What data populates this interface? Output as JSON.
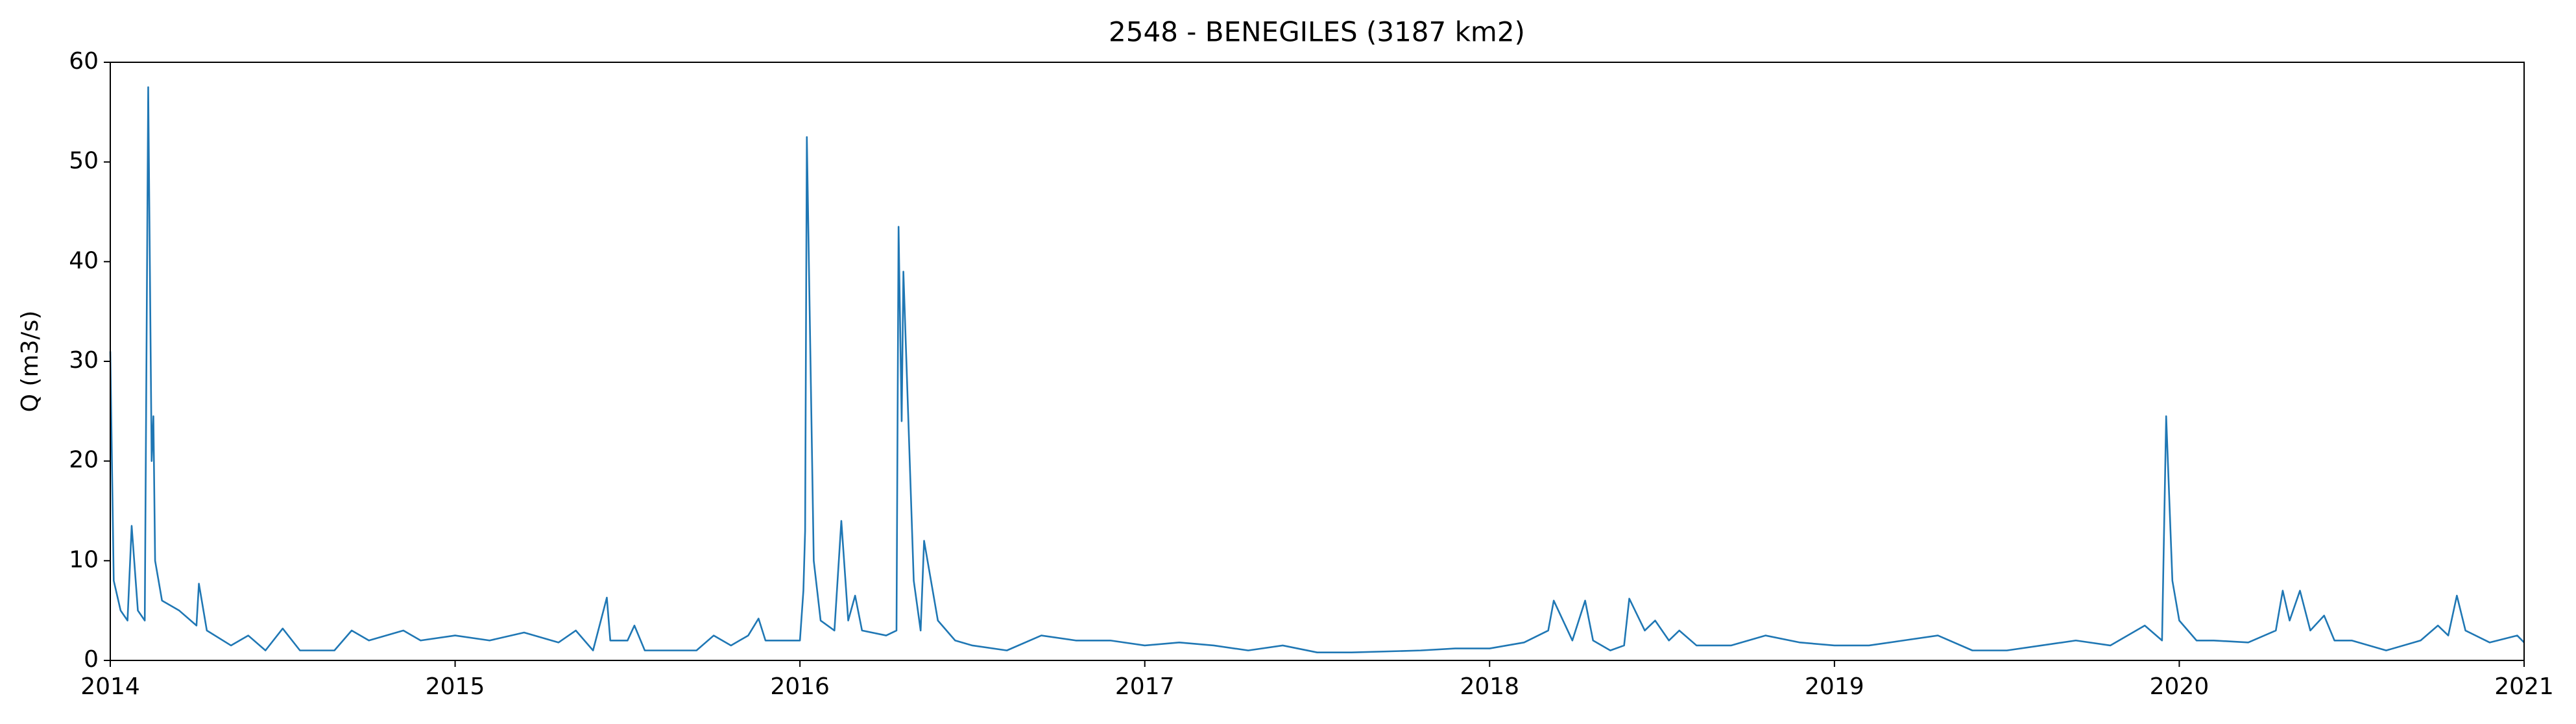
{
  "chart_data": {
    "type": "line",
    "title": "2548 - BENEGILES (3187 km2)",
    "ylabel": "Q (m3/s)",
    "xlim": [
      2014,
      2021
    ],
    "xticks": [
      2014,
      2015,
      2016,
      2017,
      2018,
      2019,
      2020,
      2021
    ],
    "ylim": [
      0,
      60
    ],
    "yticks": [
      0,
      10,
      20,
      30,
      40,
      50,
      60
    ],
    "grid": false,
    "x": [
      2014.0,
      2014.01,
      2014.03,
      2014.05,
      2014.062,
      2014.08,
      2014.1,
      2014.11,
      2014.12,
      2014.125,
      2014.13,
      2014.15,
      2014.2,
      2014.25,
      2014.257,
      2014.28,
      2014.35,
      2014.4,
      2014.45,
      2014.5,
      2014.55,
      2014.65,
      2014.7,
      2014.75,
      2014.85,
      2014.9,
      2015.0,
      2015.1,
      2015.2,
      2015.3,
      2015.35,
      2015.4,
      2015.44,
      2015.45,
      2015.5,
      2015.52,
      2015.55,
      2015.7,
      2015.75,
      2015.8,
      2015.85,
      2015.88,
      2015.9,
      2015.95,
      2016.0,
      2016.01,
      2016.015,
      2016.02,
      2016.04,
      2016.06,
      2016.1,
      2016.12,
      2016.14,
      2016.16,
      2016.18,
      2016.25,
      2016.28,
      2016.286,
      2016.295,
      2016.3,
      2016.33,
      2016.35,
      2016.36,
      2016.4,
      2016.45,
      2016.5,
      2016.6,
      2016.7,
      2016.8,
      2016.9,
      2017.0,
      2017.1,
      2017.2,
      2017.3,
      2017.4,
      2017.5,
      2017.6,
      2017.8,
      2017.9,
      2018.0,
      2018.1,
      2018.17,
      2018.186,
      2018.24,
      2018.277,
      2018.3,
      2018.35,
      2018.39,
      2018.405,
      2018.45,
      2018.48,
      2018.52,
      2018.55,
      2018.6,
      2018.7,
      2018.8,
      2018.9,
      2019.0,
      2019.1,
      2019.2,
      2019.3,
      2019.4,
      2019.5,
      2019.6,
      2019.7,
      2019.8,
      2019.9,
      2019.95,
      2019.962,
      2019.98,
      2020.0,
      2020.05,
      2020.1,
      2020.2,
      2020.28,
      2020.3,
      2020.32,
      2020.35,
      2020.38,
      2020.42,
      2020.45,
      2020.5,
      2020.6,
      2020.7,
      2020.75,
      2020.78,
      2020.805,
      2020.83,
      2020.9,
      2020.98,
      2021.0
    ],
    "series": [
      {
        "name": "Q",
        "color": "#1f77b4",
        "values": [
          31,
          8,
          5,
          4,
          13.5,
          5,
          4,
          57.5,
          20,
          24.5,
          10,
          6,
          5,
          3.5,
          7.7,
          3,
          1.5,
          2.5,
          1,
          3.2,
          1,
          1,
          3,
          2,
          3,
          2,
          2.5,
          2,
          2.8,
          1.8,
          3,
          1,
          6.3,
          2,
          2,
          3.5,
          1,
          1,
          2.5,
          1.5,
          2.5,
          4.2,
          2,
          2,
          2,
          7,
          13,
          52.5,
          10,
          4,
          3,
          14,
          4,
          6.5,
          3,
          2.5,
          3,
          43.5,
          24,
          39,
          8,
          3,
          12,
          4,
          2,
          1.5,
          1,
          2.5,
          2,
          2,
          1.5,
          1.8,
          1.5,
          1,
          1.5,
          0.8,
          0.8,
          1,
          1.2,
          1.2,
          1.8,
          3,
          6,
          2,
          6,
          2,
          1,
          1.5,
          6.2,
          3,
          4,
          2,
          3,
          1.5,
          1.5,
          2.5,
          1.8,
          1.5,
          1.5,
          2,
          2.5,
          1,
          1,
          1.5,
          2,
          1.5,
          3.5,
          2,
          24.5,
          8,
          4,
          2,
          2,
          1.8,
          3,
          7,
          4,
          7,
          3,
          4.5,
          2,
          2,
          1,
          2,
          3.5,
          2.5,
          6.5,
          3,
          1.8,
          2.5,
          1.8
        ]
      }
    ]
  }
}
